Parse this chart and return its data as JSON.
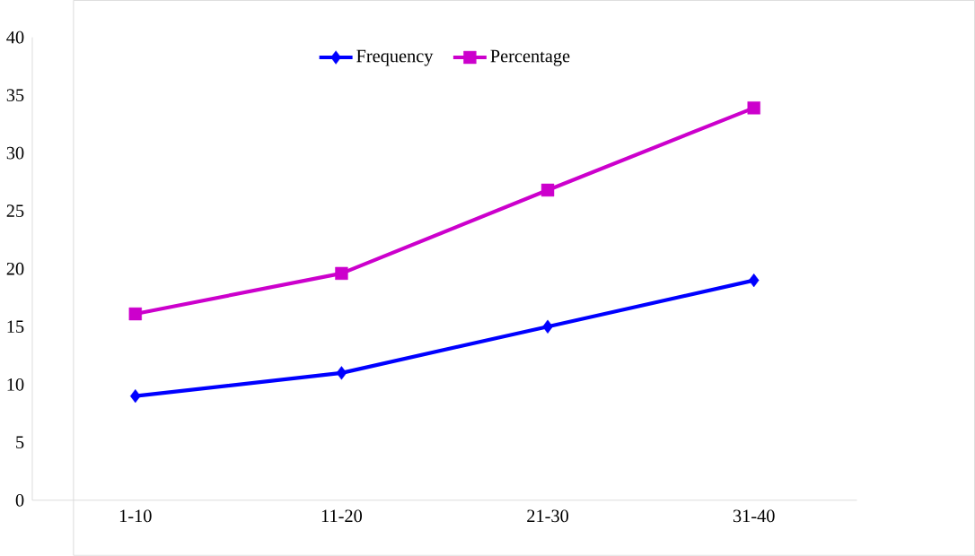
{
  "chart_data": {
    "type": "line",
    "categories": [
      "1-10",
      "11-20",
      "21-30",
      "31-40"
    ],
    "series": [
      {
        "name": "Frequency",
        "color": "#0000ff",
        "values": [
          9,
          11,
          15,
          19
        ],
        "marker": "diamond"
      },
      {
        "name": "Percentage",
        "color": "#cc00cc",
        "values": [
          16.1,
          19.6,
          26.8,
          33.9
        ],
        "marker": "square"
      }
    ],
    "ylim": [
      0,
      40
    ],
    "yticks": [
      0,
      5,
      10,
      15,
      20,
      25,
      30,
      35,
      40
    ],
    "grid": false,
    "legend": "top"
  }
}
